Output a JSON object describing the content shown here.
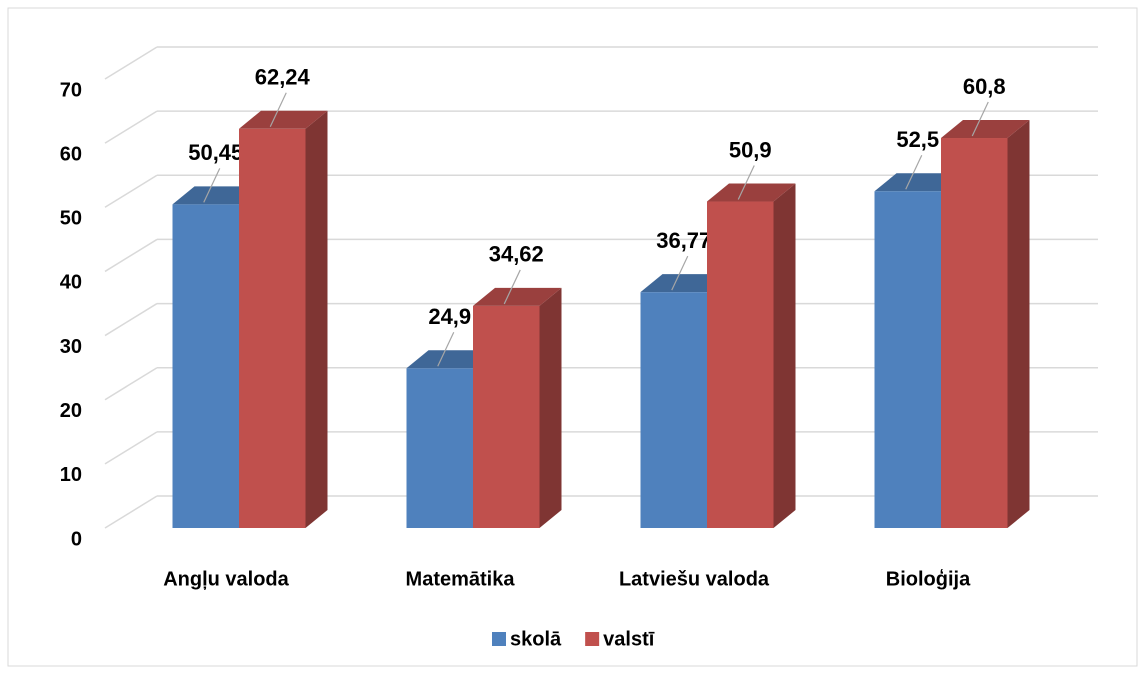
{
  "chart_data": {
    "type": "bar3d",
    "categories": [
      "Angļu valoda",
      "Matemātika",
      "Latviešu valoda",
      "Bioloģija"
    ],
    "series": [
      {
        "name": "skolā",
        "color": "#4f81bd",
        "values": [
          50.45,
          24.9,
          36.77,
          52.5
        ],
        "value_labels": [
          "50,45",
          "24,9",
          "36,77",
          "52,5"
        ]
      },
      {
        "name": "valstī",
        "color": "#c0504d",
        "values": [
          62.24,
          34.62,
          50.9,
          60.8
        ],
        "value_labels": [
          "62,24",
          "34,62",
          "50,9",
          "60,8"
        ]
      }
    ],
    "ylim": [
      0,
      70
    ],
    "yticks": [
      0,
      10,
      20,
      30,
      40,
      50,
      60,
      70
    ],
    "grid": true,
    "legend": "bottom"
  }
}
